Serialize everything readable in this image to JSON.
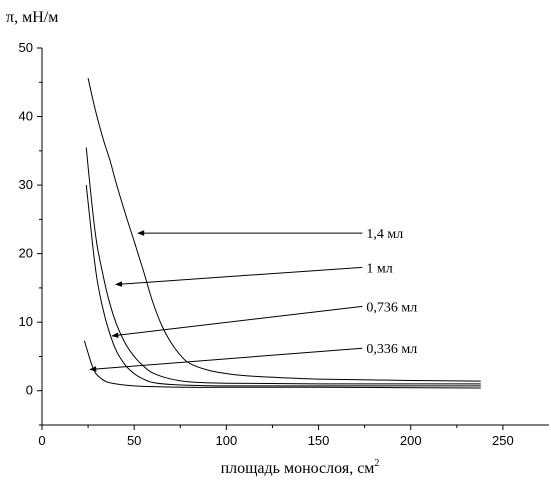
{
  "chart_data": {
    "type": "line",
    "title": "",
    "xlabel": "площадь монослоя, см",
    "xlabel_superscript": "2",
    "ylabel": "π, мН/м",
    "xlim": [
      0,
      275
    ],
    "ylim": [
      -5,
      50
    ],
    "xticks": [
      0,
      50,
      100,
      150,
      200,
      250
    ],
    "yticks": [
      0,
      10,
      20,
      30,
      40,
      50
    ],
    "grid": false,
    "legend": "none",
    "series": [
      {
        "name": "1,4 мл",
        "label_at": [
          100,
          23
        ],
        "arrow_to": [
          52,
          23
        ],
        "x": [
          25,
          28,
          31,
          34,
          37,
          40,
          45,
          50,
          55,
          60,
          65,
          70,
          75,
          80,
          90,
          100,
          110,
          130,
          150,
          200,
          238
        ],
        "y": [
          45.6,
          42.0,
          38.8,
          36.0,
          33.5,
          30.5,
          26.0,
          21.8,
          17.5,
          13.0,
          9.5,
          7.0,
          5.2,
          4.0,
          3.0,
          2.5,
          2.2,
          1.9,
          1.7,
          1.5,
          1.4
        ]
      },
      {
        "name": "1 мл",
        "label_at": [
          100,
          18
        ],
        "arrow_to": [
          40,
          15.5
        ],
        "x": [
          24,
          26,
          28,
          30,
          33,
          36,
          40,
          45,
          50,
          55,
          60,
          70,
          80,
          100,
          150,
          238
        ],
        "y": [
          35.5,
          30.0,
          25.0,
          21.0,
          17.0,
          13.5,
          10.0,
          7.0,
          5.0,
          3.6,
          2.6,
          1.7,
          1.3,
          1.1,
          1.0,
          1.0
        ]
      },
      {
        "name": "0,736 мл",
        "label_at": [
          100,
          12.3
        ],
        "arrow_to": [
          38,
          8
        ],
        "x": [
          24,
          26,
          28,
          30,
          33,
          36,
          40,
          45,
          50,
          55,
          60,
          70,
          80,
          100,
          150,
          238
        ],
        "y": [
          30.0,
          25.0,
          20.0,
          16.0,
          12.0,
          9.0,
          6.0,
          3.8,
          2.5,
          1.7,
          1.2,
          0.9,
          0.8,
          0.7,
          0.7,
          0.7
        ]
      },
      {
        "name": "0,336 мл",
        "label_at": [
          100,
          6.2
        ],
        "arrow_to": [
          26,
          3.1
        ],
        "x": [
          23,
          25,
          27,
          29,
          32,
          35,
          40,
          50,
          60,
          80,
          100,
          150,
          238
        ],
        "y": [
          7.3,
          5.5,
          3.8,
          2.6,
          1.8,
          1.3,
          1.0,
          0.7,
          0.6,
          0.5,
          0.5,
          0.5,
          0.4
        ]
      }
    ]
  }
}
